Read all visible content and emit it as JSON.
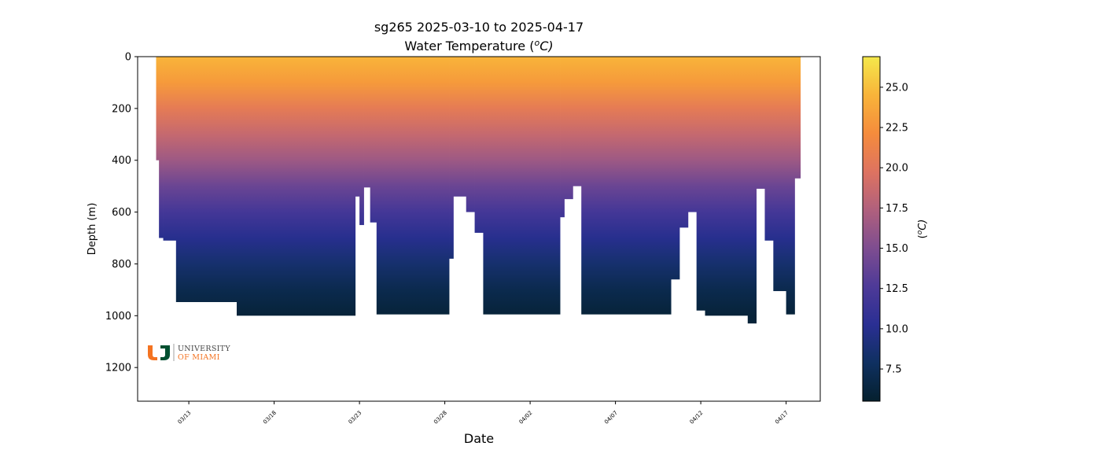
{
  "chart_data": {
    "type": "heatmap",
    "title": "sg265 2025-03-10 to 2025-04-17",
    "subtitle": "Water Temperature (",
    "subtitle_unit": "o",
    "subtitle_unit_suffix": "C)",
    "xlabel": "Date",
    "ylabel": "Depth (m)",
    "colorbar_label_prefix": "(",
    "colorbar_label_sup": "o",
    "colorbar_label_suffix": "C)",
    "xlim": [
      "2025-03-10",
      "2025-04-19"
    ],
    "ylim": [
      1330,
      0
    ],
    "y_inverted": true,
    "x_ticks": [
      "03/13",
      "03/18",
      "03/23",
      "03/28",
      "04/02",
      "04/07",
      "04/12",
      "04/17"
    ],
    "x_tick_dates": [
      "2025-03-13",
      "2025-03-18",
      "2025-03-23",
      "2025-03-28",
      "2025-04-02",
      "2025-04-07",
      "2025-04-12",
      "2025-04-17"
    ],
    "y_ticks": [
      0,
      200,
      400,
      600,
      800,
      1000,
      1200
    ],
    "y_tick_labels": [
      "0",
      "200",
      "400",
      "600",
      "800",
      "1000",
      "1200"
    ],
    "colorbar_range": [
      5.5,
      26.9
    ],
    "colorbar_ticks": [
      7.5,
      10.0,
      12.5,
      15.0,
      17.5,
      20.0,
      22.5,
      25.0
    ],
    "colorbar_tick_labels": [
      "7.5",
      "10.0",
      "12.5",
      "15.0",
      "17.5",
      "20.0",
      "22.5",
      "25.0"
    ],
    "colormap": [
      "#05202e",
      "#0f3060",
      "#2a2f93",
      "#4e3a98",
      "#7e4d90",
      "#b0607d",
      "#de7360",
      "#f58c3c",
      "#f8b43a",
      "#f4e84b"
    ],
    "temperature_profile": [
      {
        "depth": 0,
        "temp": 24.5
      },
      {
        "depth": 100,
        "temp": 23.0
      },
      {
        "depth": 200,
        "temp": 20.5
      },
      {
        "depth": 300,
        "temp": 18.5
      },
      {
        "depth": 400,
        "temp": 16.5
      },
      {
        "depth": 500,
        "temp": 14.0
      },
      {
        "depth": 600,
        "temp": 12.0
      },
      {
        "depth": 700,
        "temp": 10.0
      },
      {
        "depth": 800,
        "temp": 8.5
      },
      {
        "depth": 900,
        "temp": 7.0
      },
      {
        "depth": 1000,
        "temp": 6.0
      }
    ],
    "dive_coverage": [
      {
        "start": "2025-03-11 02:00",
        "end": "2025-03-11 06:00",
        "max_depth": 400
      },
      {
        "start": "2025-03-11 06:00",
        "end": "2025-03-11 12:00",
        "max_depth": 700
      },
      {
        "start": "2025-03-11 12:00",
        "end": "2025-03-12 06:00",
        "max_depth": 710
      },
      {
        "start": "2025-03-12 06:00",
        "end": "2025-03-15 06:00",
        "max_depth": 950
      },
      {
        "start": "2025-03-15 06:00",
        "end": "2025-03-22 18:00",
        "max_depth": 1000
      },
      {
        "start": "2025-03-22 18:00",
        "end": "2025-03-23 00:00",
        "max_depth": 540
      },
      {
        "start": "2025-03-23 00:00",
        "end": "2025-03-23 06:00",
        "max_depth": 650
      },
      {
        "start": "2025-03-23 06:00",
        "end": "2025-03-23 15:00",
        "max_depth": 505
      },
      {
        "start": "2025-03-23 15:00",
        "end": "2025-03-24 00:00",
        "max_depth": 640
      },
      {
        "start": "2025-03-24 00:00",
        "end": "2025-03-28 06:00",
        "max_depth": 995
      },
      {
        "start": "2025-03-28 06:00",
        "end": "2025-03-28 12:00",
        "max_depth": 780
      },
      {
        "start": "2025-03-28 12:00",
        "end": "2025-03-29 06:00",
        "max_depth": 540
      },
      {
        "start": "2025-03-29 06:00",
        "end": "2025-03-29 18:00",
        "max_depth": 600
      },
      {
        "start": "2025-03-29 18:00",
        "end": "2025-03-30 06:00",
        "max_depth": 680
      },
      {
        "start": "2025-03-30 06:00",
        "end": "2025-04-03 18:00",
        "max_depth": 995
      },
      {
        "start": "2025-04-03 18:00",
        "end": "2025-04-04 00:00",
        "max_depth": 620
      },
      {
        "start": "2025-04-04 00:00",
        "end": "2025-04-04 12:00",
        "max_depth": 550
      },
      {
        "start": "2025-04-04 12:00",
        "end": "2025-04-05 00:00",
        "max_depth": 500
      },
      {
        "start": "2025-04-05 00:00",
        "end": "2025-04-10 06:00",
        "max_depth": 995
      },
      {
        "start": "2025-04-10 06:00",
        "end": "2025-04-10 18:00",
        "max_depth": 860
      },
      {
        "start": "2025-04-10 18:00",
        "end": "2025-04-11 06:00",
        "max_depth": 660
      },
      {
        "start": "2025-04-11 06:00",
        "end": "2025-04-11 18:00",
        "max_depth": 600
      },
      {
        "start": "2025-04-11 18:00",
        "end": "2025-04-12 06:00",
        "max_depth": 980
      },
      {
        "start": "2025-04-12 06:00",
        "end": "2025-04-14 18:00",
        "max_depth": 1000
      },
      {
        "start": "2025-04-14 18:00",
        "end": "2025-04-15 06:00",
        "max_depth": 1030
      },
      {
        "start": "2025-04-15 06:00",
        "end": "2025-04-15 18:00",
        "max_depth": 510
      },
      {
        "start": "2025-04-15 18:00",
        "end": "2025-04-16 06:00",
        "max_depth": 710
      },
      {
        "start": "2025-04-16 06:00",
        "end": "2025-04-17 00:00",
        "max_depth": 905
      },
      {
        "start": "2025-04-17 00:00",
        "end": "2025-04-17 12:00",
        "max_depth": 995
      },
      {
        "start": "2025-04-17 12:00",
        "end": "2025-04-17 20:00",
        "max_depth": 470
      }
    ]
  },
  "logo": {
    "line1": "UNIVERSITY",
    "line2": "OF MIAMI",
    "orange": "#f47321",
    "green": "#005030"
  }
}
